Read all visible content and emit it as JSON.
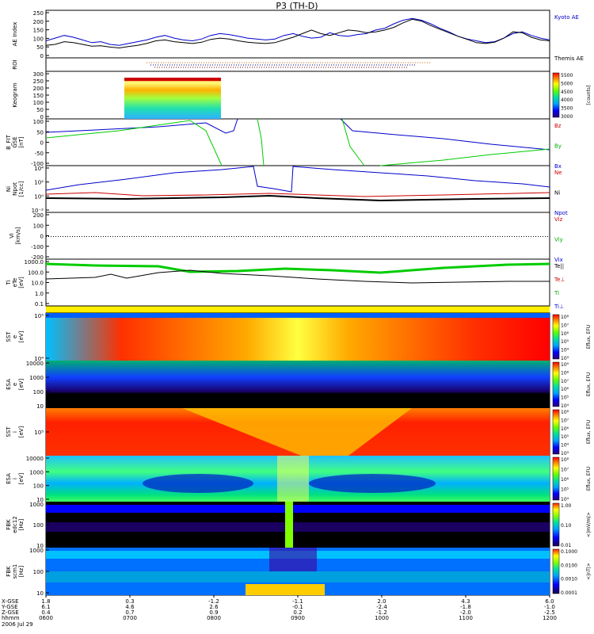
{
  "chart_data": {
    "type": "stacked-timeseries",
    "title": "P3 (TH-D)",
    "date_label": "2006 Jul 29",
    "x_labels": {
      "row_names": [
        "X-GSE",
        "Y-GSE",
        "Z-GSE",
        "hhmm"
      ],
      "columns": [
        [
          "1.8",
          "6.1",
          "0.4",
          "0600"
        ],
        [
          "0.3",
          "4.6",
          "0.7",
          "0700"
        ],
        [
          "-1.2",
          "2.6",
          "0.9",
          "0800"
        ],
        [
          "-1.1",
          "-0.1",
          "0.2",
          "0900"
        ],
        [
          "2.0",
          "-2.4",
          "-1.2",
          "1000"
        ],
        [
          "4.3",
          "-1.8",
          "-2.0",
          "1100"
        ],
        [
          "6.0",
          "-1.0",
          "-2.5",
          "1200"
        ]
      ]
    },
    "panels": [
      {
        "id": "ae",
        "ylabel": [
          "AE Index"
        ],
        "yticks": [
          "250",
          "200",
          "150",
          "100",
          "50",
          "0"
        ],
        "legend": [
          {
            "label": "Kyoto AE",
            "color": "#0000cc"
          },
          {
            "label": "Themis AE",
            "color": "#000000"
          }
        ],
        "series": [
          {
            "name": "Kyoto AE",
            "values": [
              80,
              95,
              110,
              100,
              85,
              70,
              75,
              60,
              55,
              65,
              75,
              85,
              100,
              110,
              95,
              85,
              80,
              90,
              110,
              120,
              115,
              105,
              95,
              90,
              85,
              90,
              110,
              120,
              105,
              95,
              100,
              125,
              110,
              105,
              115,
              120,
              140,
              150,
              175,
              195,
              205,
              195,
              175,
              150,
              130,
              105,
              90,
              80,
              70,
              75,
              95,
              120,
              130,
              110,
              95,
              85
            ]
          },
          {
            "name": "Themis AE",
            "values": [
              55,
              60,
              75,
              70,
              60,
              50,
              52,
              45,
              40,
              48,
              55,
              65,
              80,
              85,
              75,
              70,
              65,
              72,
              88,
              95,
              90,
              80,
              72,
              68,
              65,
              70,
              85,
              100,
              120,
              140,
              120,
              110,
              125,
              140,
              135,
              125,
              130,
              140,
              155,
              180,
              200,
              190,
              165,
              145,
              125,
              105,
              88,
              70,
              65,
              72,
              95,
              130,
              125,
              100,
              85,
              80
            ]
          }
        ]
      },
      {
        "id": "roi",
        "ylabel": [
          "ROI"
        ]
      },
      {
        "id": "keogram",
        "ylabel": [
          "Keogram"
        ],
        "yticks": [
          "300",
          "250",
          "200",
          "150",
          "100",
          "50",
          "0"
        ],
        "colorbar": {
          "ticks": [
            "5500",
            "5000",
            "4500",
            "4000",
            "3500",
            "3000"
          ],
          "label": "[counts]"
        }
      },
      {
        "id": "bfit",
        "ylabel": [
          "B_FIT",
          "GSE",
          "[nT]"
        ],
        "yticks": [
          "100",
          "50",
          "0",
          "-50",
          "-100"
        ],
        "legend": [
          {
            "label": "Bz",
            "color": "#cc0000"
          },
          {
            "label": "By",
            "color": "#00aa00"
          },
          {
            "label": "Bx",
            "color": "#0000cc"
          }
        ]
      },
      {
        "id": "ni",
        "ylabel": [
          "Ni",
          "Npot",
          "[1/cc]"
        ],
        "yticks": [
          "10⁴",
          "10²",
          "10⁰",
          "10⁻²"
        ],
        "legend": [
          {
            "label": "Ne",
            "color": "#cc0000"
          },
          {
            "label": "Ni",
            "color": "#000000"
          },
          {
            "label": "Npot",
            "color": "#0000cc"
          }
        ]
      },
      {
        "id": "vi",
        "ylabel": [
          "Vi",
          "[km/s]"
        ],
        "yticks": [
          "200",
          "100",
          "0",
          "-100",
          "-200"
        ],
        "legend": [
          {
            "label": "Viz",
            "color": "#cc0000"
          },
          {
            "label": "Viy",
            "color": "#00aa00"
          },
          {
            "label": "Vix",
            "color": "#0000cc"
          }
        ]
      },
      {
        "id": "ti",
        "ylabel": [
          "Ti",
          "eTe",
          "[eV]"
        ],
        "yticks": [
          "1000.0",
          "100.0",
          "10.0",
          "1.0",
          "0.1"
        ],
        "legend": [
          {
            "label": "Te||",
            "color": "#000000"
          },
          {
            "label": "Te⊥",
            "color": "#cc0000"
          },
          {
            "label": "Ti",
            "color": "#00aa00"
          },
          {
            "label": "Ti⊥",
            "color": "#0000cc"
          }
        ]
      },
      {
        "id": "sst_e",
        "ylabel": [
          "SST",
          "e",
          "[eV]"
        ],
        "yticks": [
          "10⁵",
          "10⁴"
        ],
        "colorbar": {
          "ticks": [
            "10⁸",
            "10⁷",
            "10⁶",
            "10⁵",
            "10⁴",
            "10³"
          ],
          "label": "Eflux, EFU"
        }
      },
      {
        "id": "esa_e",
        "ylabel": [
          "ESA",
          "e",
          "[eV]"
        ],
        "yticks": [
          "10000",
          "1000",
          "100",
          "10"
        ],
        "colorbar": {
          "ticks": [
            "10⁹",
            "10⁸",
            "10⁷",
            "10⁶",
            "10⁵",
            "10⁴"
          ],
          "label": "Eflux, EFU"
        }
      },
      {
        "id": "sst_i",
        "ylabel": [
          "SST",
          "i",
          "[eV]"
        ],
        "yticks": [
          "10⁵"
        ],
        "colorbar": {
          "ticks": [
            "10⁸",
            "10⁷",
            "10⁶",
            "10⁵",
            "10⁴",
            "10³"
          ],
          "label": "Eflux, EFU"
        }
      },
      {
        "id": "esa_i",
        "ylabel": [
          "ESA",
          "i",
          "[eV]"
        ],
        "yticks": [
          "10000",
          "1000",
          "100",
          "10"
        ],
        "colorbar": {
          "ticks": [
            "10⁸",
            "10⁷",
            "10⁶",
            "10⁵",
            "10⁴"
          ],
          "label": "Eflux, EFU"
        }
      },
      {
        "id": "fbk_e",
        "ylabel": [
          "FBK",
          "edc12",
          "[Hz]"
        ],
        "yticks": [
          "1000",
          "100",
          "10"
        ],
        "colorbar": {
          "ticks": [
            "1.00",
            "0.10",
            "0.01"
          ],
          "label": "<|mV/m|>"
        }
      },
      {
        "id": "fbk_b",
        "ylabel": [
          "FBK",
          "scm1",
          "[Hz]"
        ],
        "yticks": [
          "1000",
          "100",
          "10"
        ],
        "colorbar": {
          "ticks": [
            "0.1000",
            "0.0100",
            "0.0010",
            "0.0001"
          ],
          "label": "<|nT|>"
        }
      }
    ]
  }
}
